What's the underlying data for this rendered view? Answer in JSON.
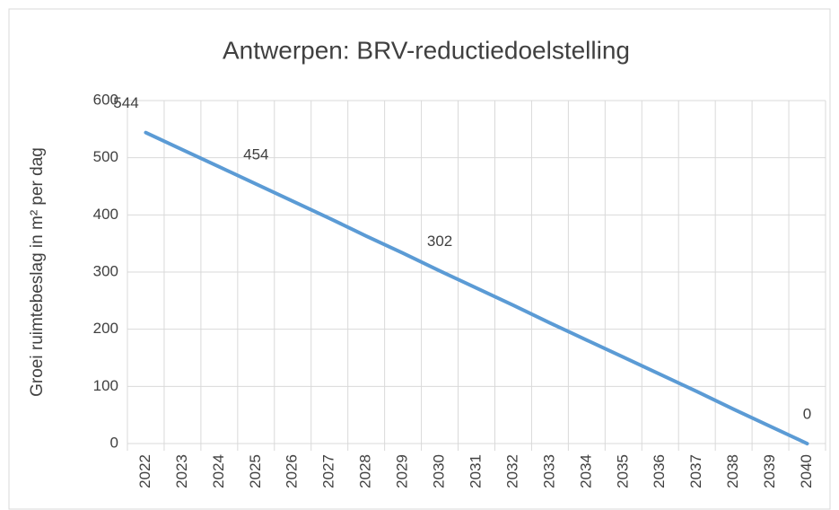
{
  "chart_data": {
    "type": "line",
    "title": "Antwerpen: BRV-reductiedoelstelling",
    "y_label": "Groei ruimtebeslag in m² per dag",
    "categories": [
      "2022",
      "2023",
      "2024",
      "2025",
      "2026",
      "2027",
      "2028",
      "2029",
      "2030",
      "2031",
      "2032",
      "2033",
      "2034",
      "2035",
      "2036",
      "2037",
      "2038",
      "2039",
      "2040"
    ],
    "values": [
      544,
      514,
      484,
      454,
      424,
      394,
      363,
      333,
      302,
      272,
      242,
      211,
      181,
      151,
      121,
      91,
      60,
      30,
      0
    ],
    "value_labels": [
      "544",
      null,
      null,
      "454",
      null,
      null,
      null,
      null,
      "302",
      null,
      null,
      null,
      null,
      null,
      null,
      null,
      null,
      null,
      "0"
    ],
    "color": "#5b9bd5",
    "ylim": [
      0,
      600
    ],
    "yticks": [
      0,
      100,
      200,
      300,
      400,
      500,
      600
    ],
    "grid": true
  }
}
